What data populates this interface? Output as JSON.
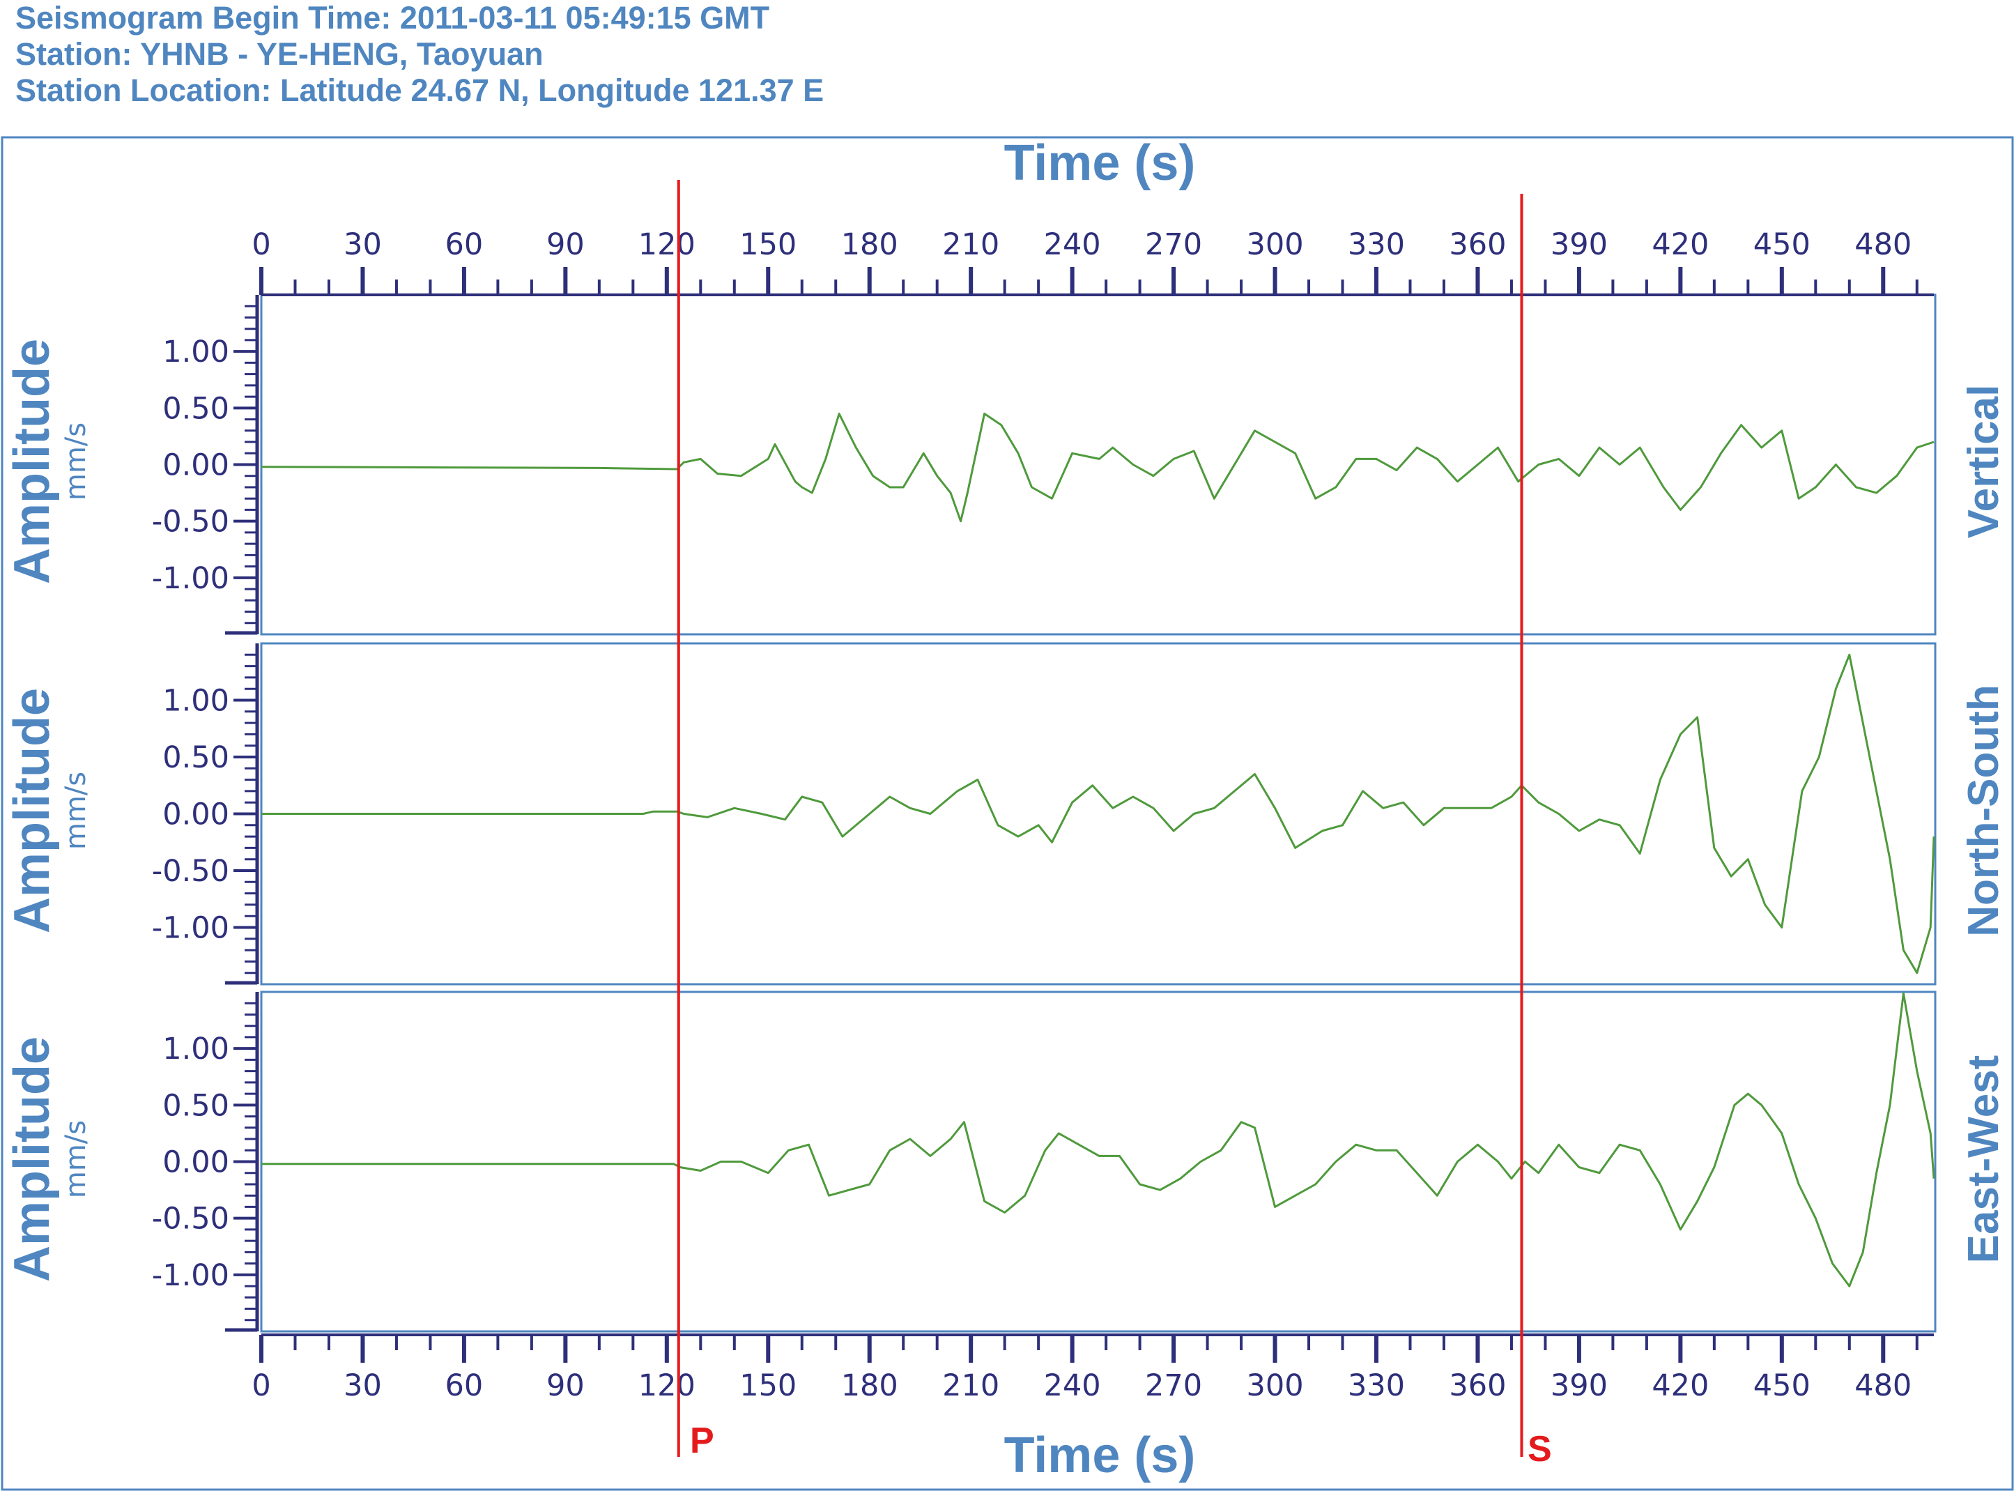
{
  "header": {
    "line1": "Seismogram Begin Time: 2011-03-11 05:49:15 GMT",
    "line2": "Station: YHNB - YE-HENG, Taoyuan",
    "line3": "Station Location: Latitude 24.67 N, Longitude 121.37 E"
  },
  "colors": {
    "trace": "#4f9a3c",
    "frame": "#4f86c0",
    "axis": "#2e2f7a",
    "phase": "#e41a1c"
  },
  "chart_data": {
    "type": "line",
    "xlabel": "Time (s)",
    "ylabel": "Amplitude",
    "yunit": "mm/s",
    "xlim": [
      0,
      495
    ],
    "ylim": [
      -1.5,
      1.5
    ],
    "x_ticks": [
      "0",
      "30",
      "60",
      "90",
      "120",
      "150",
      "180",
      "210",
      "240",
      "270",
      "300",
      "330",
      "360",
      "390",
      "420",
      "450",
      "480"
    ],
    "y_ticks": [
      "1.00",
      "0.50",
      "0.00",
      "-0.50",
      "-1.00"
    ],
    "phases": [
      {
        "name": "P",
        "time": 123.5
      },
      {
        "name": "S",
        "time": 373
      }
    ],
    "series": [
      {
        "name": "Vertical",
        "points": [
          [
            0,
            -0.02
          ],
          [
            100,
            -0.03
          ],
          [
            123,
            -0.04
          ],
          [
            125,
            0.02
          ],
          [
            130,
            0.05
          ],
          [
            135,
            -0.08
          ],
          [
            142,
            -0.1
          ],
          [
            150,
            0.05
          ],
          [
            152,
            0.18
          ],
          [
            158,
            -0.15
          ],
          [
            160,
            -0.2
          ],
          [
            163,
            -0.25
          ],
          [
            167,
            0.05
          ],
          [
            171,
            0.45
          ],
          [
            176,
            0.15
          ],
          [
            181,
            -0.1
          ],
          [
            186,
            -0.2
          ],
          [
            190,
            -0.2
          ],
          [
            196,
            0.1
          ],
          [
            200,
            -0.1
          ],
          [
            204,
            -0.25
          ],
          [
            207,
            -0.5
          ],
          [
            209,
            -0.25
          ],
          [
            214,
            0.45
          ],
          [
            219,
            0.35
          ],
          [
            224,
            0.1
          ],
          [
            228,
            -0.2
          ],
          [
            234,
            -0.3
          ],
          [
            240,
            0.1
          ],
          [
            248,
            0.05
          ],
          [
            252,
            0.15
          ],
          [
            258,
            0.0
          ],
          [
            264,
            -0.1
          ],
          [
            270,
            0.05
          ],
          [
            276,
            0.12
          ],
          [
            282,
            -0.3
          ],
          [
            290,
            0.1
          ],
          [
            294,
            0.3
          ],
          [
            300,
            0.2
          ],
          [
            306,
            0.1
          ],
          [
            312,
            -0.3
          ],
          [
            318,
            -0.2
          ],
          [
            324,
            0.05
          ],
          [
            330,
            0.05
          ],
          [
            336,
            -0.05
          ],
          [
            342,
            0.15
          ],
          [
            348,
            0.05
          ],
          [
            354,
            -0.15
          ],
          [
            360,
            0.0
          ],
          [
            366,
            0.15
          ],
          [
            372,
            -0.15
          ],
          [
            378,
            0.0
          ],
          [
            384,
            0.05
          ],
          [
            390,
            -0.1
          ],
          [
            396,
            0.15
          ],
          [
            402,
            0.0
          ],
          [
            408,
            0.15
          ],
          [
            415,
            -0.2
          ],
          [
            420,
            -0.4
          ],
          [
            426,
            -0.2
          ],
          [
            432,
            0.1
          ],
          [
            438,
            0.35
          ],
          [
            444,
            0.15
          ],
          [
            450,
            0.3
          ],
          [
            455,
            -0.3
          ],
          [
            460,
            -0.2
          ],
          [
            466,
            0.0
          ],
          [
            472,
            -0.2
          ],
          [
            478,
            -0.25
          ],
          [
            484,
            -0.1
          ],
          [
            490,
            0.15
          ],
          [
            495,
            0.2
          ]
        ]
      },
      {
        "name": "North-South",
        "points": [
          [
            0,
            0.0
          ],
          [
            90,
            0.0
          ],
          [
            113,
            0.0
          ],
          [
            116,
            0.02
          ],
          [
            123,
            0.02
          ],
          [
            125,
            0.0
          ],
          [
            132,
            -0.03
          ],
          [
            140,
            0.05
          ],
          [
            148,
            0.0
          ],
          [
            155,
            -0.05
          ],
          [
            160,
            0.15
          ],
          [
            166,
            0.1
          ],
          [
            172,
            -0.2
          ],
          [
            180,
            0.0
          ],
          [
            186,
            0.15
          ],
          [
            192,
            0.05
          ],
          [
            198,
            0.0
          ],
          [
            206,
            0.2
          ],
          [
            212,
            0.3
          ],
          [
            218,
            -0.1
          ],
          [
            224,
            -0.2
          ],
          [
            230,
            -0.1
          ],
          [
            234,
            -0.25
          ],
          [
            240,
            0.1
          ],
          [
            246,
            0.25
          ],
          [
            252,
            0.05
          ],
          [
            258,
            0.15
          ],
          [
            264,
            0.05
          ],
          [
            270,
            -0.15
          ],
          [
            276,
            0.0
          ],
          [
            282,
            0.05
          ],
          [
            288,
            0.2
          ],
          [
            294,
            0.35
          ],
          [
            300,
            0.05
          ],
          [
            306,
            -0.3
          ],
          [
            314,
            -0.15
          ],
          [
            320,
            -0.1
          ],
          [
            326,
            0.2
          ],
          [
            332,
            0.05
          ],
          [
            338,
            0.1
          ],
          [
            344,
            -0.1
          ],
          [
            350,
            0.05
          ],
          [
            356,
            0.05
          ],
          [
            364,
            0.05
          ],
          [
            370,
            0.15
          ],
          [
            373,
            0.25
          ],
          [
            378,
            0.1
          ],
          [
            384,
            0.0
          ],
          [
            390,
            -0.15
          ],
          [
            396,
            -0.05
          ],
          [
            402,
            -0.1
          ],
          [
            408,
            -0.35
          ],
          [
            414,
            0.3
          ],
          [
            420,
            0.7
          ],
          [
            425,
            0.85
          ],
          [
            430,
            -0.3
          ],
          [
            435,
            -0.55
          ],
          [
            440,
            -0.4
          ],
          [
            445,
            -0.8
          ],
          [
            450,
            -1.0
          ],
          [
            456,
            0.2
          ],
          [
            461,
            0.5
          ],
          [
            466,
            1.1
          ],
          [
            470,
            1.4
          ],
          [
            476,
            0.5
          ],
          [
            482,
            -0.4
          ],
          [
            486,
            -1.2
          ],
          [
            490,
            -1.4
          ],
          [
            494,
            -1.0
          ],
          [
            495,
            -0.2
          ]
        ]
      },
      {
        "name": "East-West",
        "points": [
          [
            0,
            -0.02
          ],
          [
            122,
            -0.02
          ],
          [
            124,
            -0.05
          ],
          [
            130,
            -0.08
          ],
          [
            136,
            0.0
          ],
          [
            142,
            0.0
          ],
          [
            150,
            -0.1
          ],
          [
            156,
            0.1
          ],
          [
            162,
            0.15
          ],
          [
            168,
            -0.3
          ],
          [
            174,
            -0.25
          ],
          [
            180,
            -0.2
          ],
          [
            186,
            0.1
          ],
          [
            192,
            0.2
          ],
          [
            198,
            0.05
          ],
          [
            204,
            0.2
          ],
          [
            208,
            0.35
          ],
          [
            214,
            -0.35
          ],
          [
            220,
            -0.45
          ],
          [
            226,
            -0.3
          ],
          [
            232,
            0.1
          ],
          [
            236,
            0.25
          ],
          [
            242,
            0.15
          ],
          [
            248,
            0.05
          ],
          [
            254,
            0.05
          ],
          [
            260,
            -0.2
          ],
          [
            266,
            -0.25
          ],
          [
            272,
            -0.15
          ],
          [
            278,
            0.0
          ],
          [
            284,
            0.1
          ],
          [
            290,
            0.35
          ],
          [
            294,
            0.3
          ],
          [
            300,
            -0.4
          ],
          [
            306,
            -0.3
          ],
          [
            312,
            -0.2
          ],
          [
            318,
            0.0
          ],
          [
            324,
            0.15
          ],
          [
            330,
            0.1
          ],
          [
            336,
            0.1
          ],
          [
            342,
            -0.1
          ],
          [
            348,
            -0.3
          ],
          [
            354,
            0.0
          ],
          [
            360,
            0.15
          ],
          [
            366,
            0.0
          ],
          [
            370,
            -0.15
          ],
          [
            374,
            0.0
          ],
          [
            378,
            -0.1
          ],
          [
            384,
            0.15
          ],
          [
            390,
            -0.05
          ],
          [
            396,
            -0.1
          ],
          [
            402,
            0.15
          ],
          [
            408,
            0.1
          ],
          [
            414,
            -0.2
          ],
          [
            420,
            -0.6
          ],
          [
            425,
            -0.35
          ],
          [
            430,
            -0.05
          ],
          [
            436,
            0.5
          ],
          [
            440,
            0.6
          ],
          [
            444,
            0.5
          ],
          [
            450,
            0.25
          ],
          [
            455,
            -0.2
          ],
          [
            460,
            -0.5
          ],
          [
            465,
            -0.9
          ],
          [
            470,
            -1.1
          ],
          [
            474,
            -0.8
          ],
          [
            478,
            -0.1
          ],
          [
            482,
            0.5
          ],
          [
            486,
            1.5
          ],
          [
            490,
            0.8
          ],
          [
            494,
            0.25
          ],
          [
            495,
            -0.15
          ]
        ]
      }
    ]
  }
}
